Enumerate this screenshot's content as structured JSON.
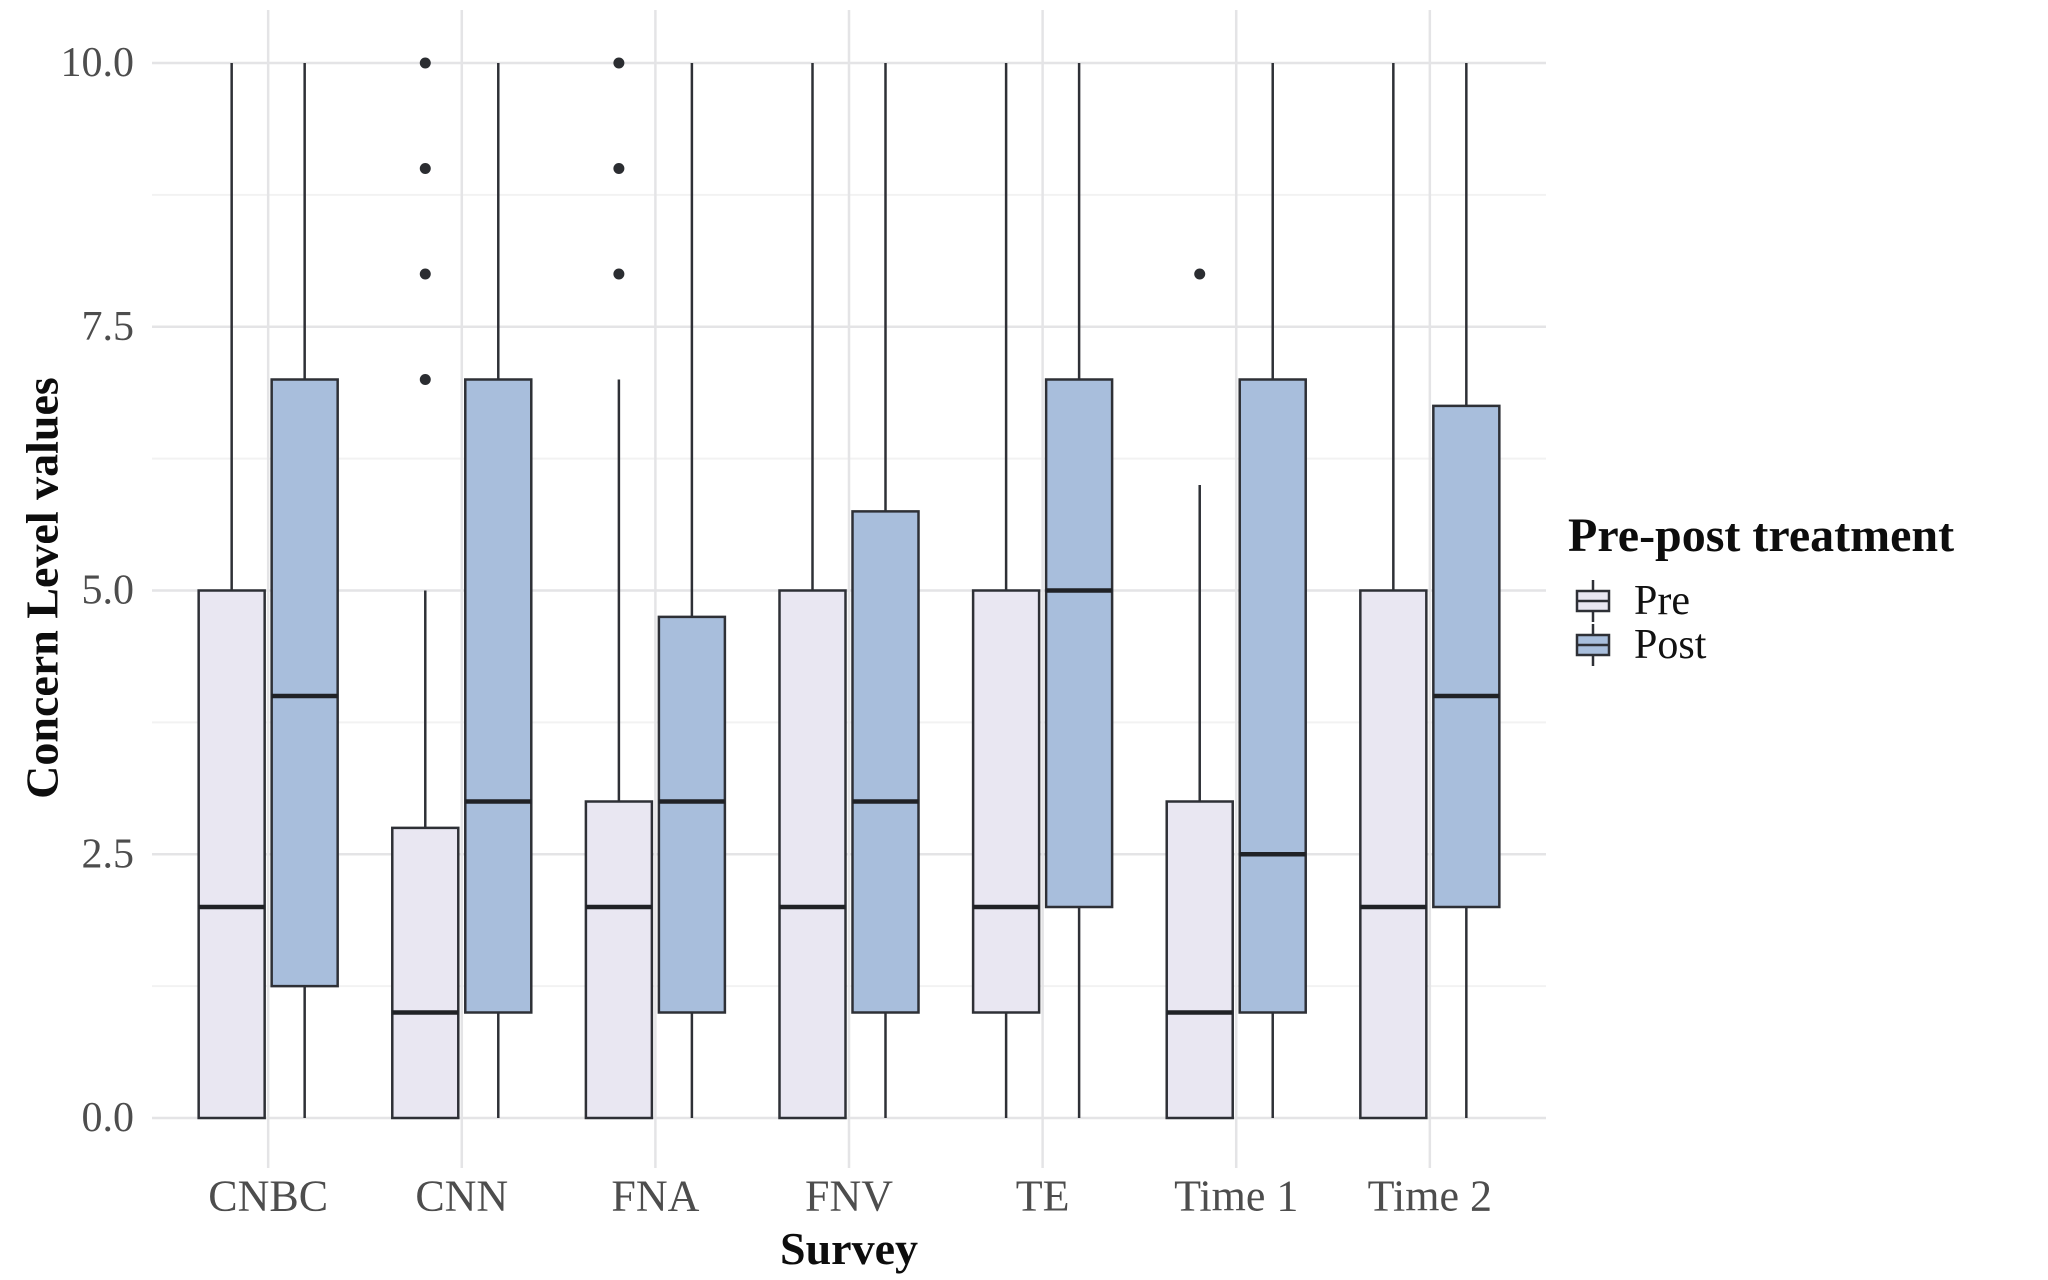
{
  "chart_data": {
    "type": "boxplot",
    "title": "",
    "xlabel": "Survey",
    "ylabel": "Concern Level values",
    "categories": [
      "CNBC",
      "CNN",
      "FNA",
      "FNV",
      "TE",
      "Time 1",
      "Time 2"
    ],
    "y_ticks": [
      0.0,
      2.5,
      5.0,
      7.5,
      10.0
    ],
    "y_tick_labels": [
      "0.0",
      "2.5",
      "5.0",
      "7.5",
      "10.0"
    ],
    "y_minor_ticks": [
      1.25,
      3.75,
      6.25,
      8.75
    ],
    "ylim": [
      0,
      10
    ],
    "grid": "on",
    "legend_position": "right",
    "legend": {
      "title": "Pre-post treatment",
      "items": [
        {
          "label": "Pre",
          "fill": "#e9e7f2"
        },
        {
          "label": "Post",
          "fill": "#a8bedc"
        }
      ]
    },
    "series": [
      {
        "name": "Pre",
        "fill": "#e9e7f2",
        "boxes": [
          {
            "category": "CNBC",
            "whisker_low": 0,
            "q1": 0,
            "median": 2,
            "q3": 5,
            "whisker_high": 10,
            "outliers": []
          },
          {
            "category": "CNN",
            "whisker_low": 0,
            "q1": 0,
            "median": 1,
            "q3": 2.75,
            "whisker_high": 5,
            "outliers": [
              7,
              8,
              9,
              10
            ]
          },
          {
            "category": "FNA",
            "whisker_low": 0,
            "q1": 0,
            "median": 2,
            "q3": 3,
            "whisker_high": 7,
            "outliers": [
              8,
              9,
              10
            ]
          },
          {
            "category": "FNV",
            "whisker_low": 0,
            "q1": 0,
            "median": 2,
            "q3": 5,
            "whisker_high": 10,
            "outliers": []
          },
          {
            "category": "TE",
            "whisker_low": 0,
            "q1": 1,
            "median": 2,
            "q3": 5,
            "whisker_high": 10,
            "outliers": []
          },
          {
            "category": "Time 1",
            "whisker_low": 0,
            "q1": 0,
            "median": 1,
            "q3": 3,
            "whisker_high": 6,
            "outliers": [
              8
            ]
          },
          {
            "category": "Time 2",
            "whisker_low": 0,
            "q1": 0,
            "median": 2,
            "q3": 5,
            "whisker_high": 10,
            "outliers": []
          }
        ]
      },
      {
        "name": "Post",
        "fill": "#a8bedc",
        "boxes": [
          {
            "category": "CNBC",
            "whisker_low": 0,
            "q1": 1.25,
            "median": 4,
            "q3": 7,
            "whisker_high": 10,
            "outliers": []
          },
          {
            "category": "CNN",
            "whisker_low": 0,
            "q1": 1,
            "median": 3,
            "q3": 7,
            "whisker_high": 10,
            "outliers": []
          },
          {
            "category": "FNA",
            "whisker_low": 0,
            "q1": 1,
            "median": 3,
            "q3": 4.75,
            "whisker_high": 10,
            "outliers": []
          },
          {
            "category": "FNV",
            "whisker_low": 0,
            "q1": 1,
            "median": 3,
            "q3": 5.75,
            "whisker_high": 10,
            "outliers": []
          },
          {
            "category": "TE",
            "whisker_low": 0,
            "q1": 2,
            "median": 5,
            "q3": 7,
            "whisker_high": 10,
            "outliers": []
          },
          {
            "category": "Time 1",
            "whisker_low": 0,
            "q1": 1,
            "median": 2.5,
            "q3": 7,
            "whisker_high": 10,
            "outliers": []
          },
          {
            "category": "Time 2",
            "whisker_low": 0,
            "q1": 2,
            "median": 4,
            "q3": 6.75,
            "whisker_high": 10,
            "outliers": []
          }
        ]
      }
    ],
    "colors": {
      "box_stroke": "#2e3036",
      "median_stroke": "#202226",
      "outlier_fill": "#2b2d31",
      "grid_major": "#e4e4e6",
      "grid_minor": "#f2f2f2",
      "tick_label": "#4d4d4d",
      "panel_bg": "#ffffff"
    }
  }
}
